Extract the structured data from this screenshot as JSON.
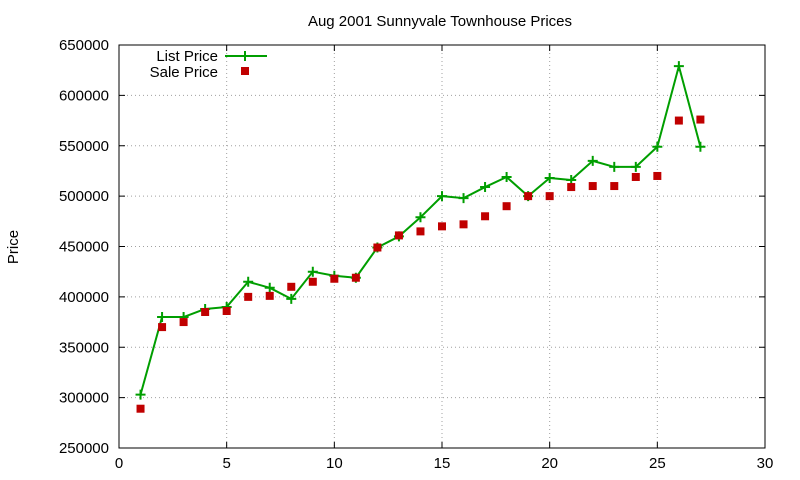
{
  "chart_data": {
    "type": "line",
    "title": "Aug 2001 Sunnyvale Townhouse Prices",
    "xlabel": "",
    "ylabel": "Price",
    "xlim": [
      0,
      30
    ],
    "ylim": [
      250000,
      650000
    ],
    "xticks": [
      0,
      5,
      10,
      15,
      20,
      25,
      30
    ],
    "yticks": [
      250000,
      300000,
      350000,
      400000,
      450000,
      500000,
      550000,
      600000,
      650000
    ],
    "grid": true,
    "legend_position": "top-left",
    "series": [
      {
        "name": "List Price",
        "style": "line-with-plus-markers",
        "color": "#009e00",
        "points": [
          [
            1,
            303000
          ],
          [
            2,
            380000
          ],
          [
            3,
            380000
          ],
          [
            4,
            388000
          ],
          [
            5,
            390000
          ],
          [
            6,
            415000
          ],
          [
            7,
            409000
          ],
          [
            8,
            398000
          ],
          [
            9,
            425000
          ],
          [
            10,
            421000
          ],
          [
            11,
            419000
          ],
          [
            12,
            449000
          ],
          [
            13,
            460000
          ],
          [
            14,
            479000
          ],
          [
            15,
            500000
          ],
          [
            16,
            498000
          ],
          [
            17,
            509000
          ],
          [
            18,
            519000
          ],
          [
            19,
            500000
          ],
          [
            20,
            518000
          ],
          [
            21,
            516000
          ],
          [
            22,
            535000
          ],
          [
            23,
            529000
          ],
          [
            24,
            529000
          ],
          [
            25,
            549000
          ],
          [
            26,
            629000
          ],
          [
            27,
            549000
          ]
        ]
      },
      {
        "name": "Sale Price",
        "style": "square-markers",
        "color": "#c00000",
        "points": [
          [
            1,
            289000
          ],
          [
            2,
            370000
          ],
          [
            3,
            375000
          ],
          [
            4,
            385000
          ],
          [
            5,
            386000
          ],
          [
            6,
            400000
          ],
          [
            7,
            401000
          ],
          [
            8,
            410000
          ],
          [
            9,
            415000
          ],
          [
            10,
            418000
          ],
          [
            11,
            419000
          ],
          [
            12,
            449000
          ],
          [
            13,
            461000
          ],
          [
            14,
            465000
          ],
          [
            15,
            470000
          ],
          [
            16,
            472000
          ],
          [
            17,
            480000
          ],
          [
            18,
            490000
          ],
          [
            19,
            500000
          ],
          [
            20,
            500000
          ],
          [
            21,
            509000
          ],
          [
            22,
            510000
          ],
          [
            23,
            510000
          ],
          [
            24,
            519000
          ],
          [
            25,
            520000
          ],
          [
            26,
            575000
          ],
          [
            27,
            576000
          ]
        ]
      }
    ]
  }
}
